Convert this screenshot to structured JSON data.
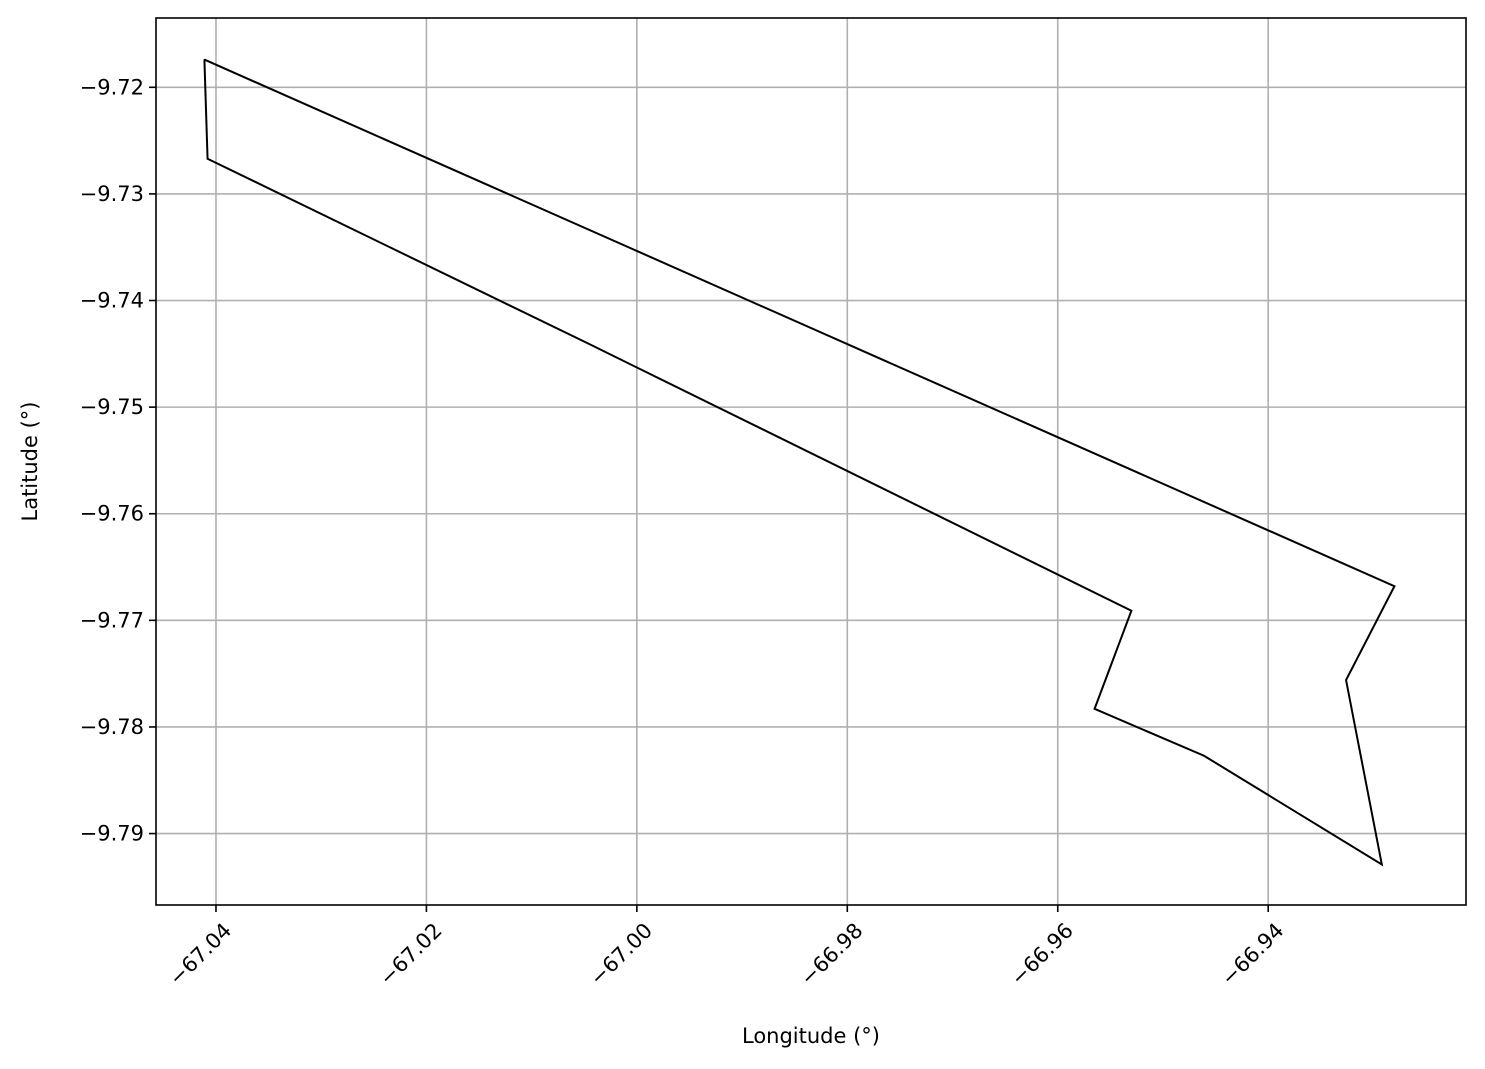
{
  "chart_data": {
    "type": "line",
    "title": "",
    "xlabel": "Longitude (°)",
    "ylabel": "Latitude (°)",
    "xlim": [
      -67.0457,
      -66.9212
    ],
    "ylim": [
      -9.7967,
      -9.7135
    ],
    "grid": true,
    "x_ticks": [
      {
        "value": -67.04,
        "label": "−67.04"
      },
      {
        "value": -67.02,
        "label": "−67.02"
      },
      {
        "value": -67.0,
        "label": "−67.00"
      },
      {
        "value": -66.98,
        "label": "−66.98"
      },
      {
        "value": -66.96,
        "label": "−66.96"
      },
      {
        "value": -66.94,
        "label": "−66.94"
      }
    ],
    "y_ticks": [
      {
        "value": -9.72,
        "label": "−9.72"
      },
      {
        "value": -9.73,
        "label": "−9.73"
      },
      {
        "value": -9.74,
        "label": "−9.74"
      },
      {
        "value": -9.75,
        "label": "−9.75"
      },
      {
        "value": -9.76,
        "label": "−9.76"
      },
      {
        "value": -9.77,
        "label": "−9.77"
      },
      {
        "value": -9.78,
        "label": "−9.78"
      },
      {
        "value": -9.79,
        "label": "−9.79"
      }
    ],
    "series": [
      {
        "color": "#000000",
        "closed": true,
        "points": [
          [
            -67.0411,
            -9.7174
          ],
          [
            -67.0408,
            -9.7267
          ],
          [
            -67.0047,
            -9.744
          ],
          [
            -66.953,
            -9.7691
          ],
          [
            -66.9565,
            -9.7783
          ],
          [
            -66.9461,
            -9.7827
          ],
          [
            -66.9292,
            -9.7929
          ],
          [
            -66.9326,
            -9.7756
          ],
          [
            -66.928,
            -9.7668
          ],
          [
            -67.0411,
            -9.7174
          ]
        ]
      }
    ]
  }
}
